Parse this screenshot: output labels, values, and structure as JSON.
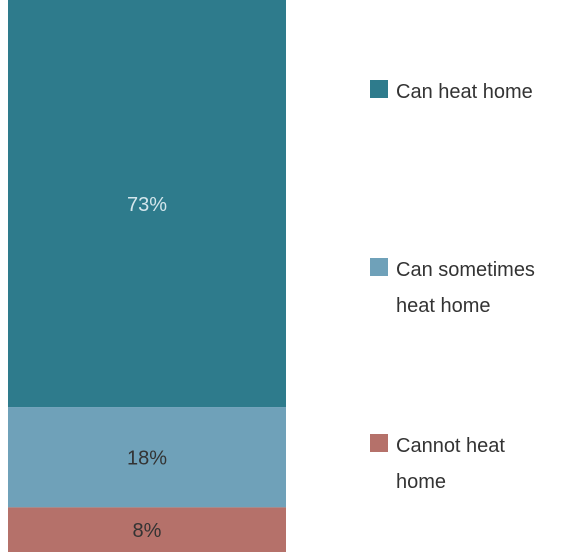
{
  "chart_data": {
    "type": "bar",
    "stacked": true,
    "categories": [
      null
    ],
    "series": [
      {
        "name": "Can heat home",
        "color": "#2e7b8c",
        "values": [
          73
        ],
        "value_labels": [
          "73%"
        ]
      },
      {
        "name": "Can sometimes heat home",
        "color": "#6fa1b9",
        "values": [
          18
        ],
        "value_labels": [
          "18%"
        ]
      },
      {
        "name": "Cannot heat home",
        "color": "#b5716a",
        "values": [
          8
        ],
        "value_labels": [
          "8%"
        ]
      }
    ],
    "legend": "right"
  }
}
